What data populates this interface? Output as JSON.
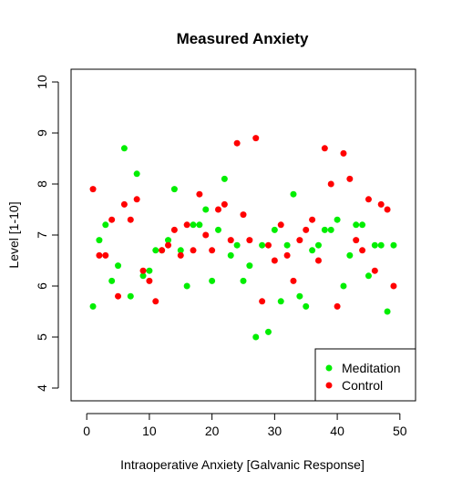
{
  "chart_data": {
    "type": "scatter",
    "title": "Measured Anxiety",
    "xlabel": "Intraoperative Anxiety [Galvanic Response]",
    "ylabel": "Level [1-10]",
    "xlim": [
      -2.5,
      52.5
    ],
    "ylim": [
      3.75,
      10.25
    ],
    "xticks": [
      "0",
      "10",
      "20",
      "30",
      "40",
      "50"
    ],
    "yticks": [
      "4",
      "5",
      "6",
      "7",
      "8",
      "9",
      "10"
    ],
    "legend_position": "bottom-right",
    "series": [
      {
        "name": "Meditation",
        "color": "#00ee00",
        "x": [
          1,
          2,
          3,
          4,
          5,
          6,
          7,
          8,
          9,
          10,
          11,
          12,
          13,
          14,
          15,
          16,
          17,
          18,
          19,
          20,
          21,
          22,
          23,
          24,
          25,
          26,
          27,
          28,
          29,
          30,
          31,
          32,
          33,
          34,
          35,
          36,
          37,
          38,
          39,
          40,
          41,
          42,
          43,
          44,
          45,
          46,
          47,
          48,
          49
        ],
        "y": [
          5.6,
          6.9,
          7.2,
          6.1,
          6.4,
          8.7,
          5.8,
          8.2,
          6.2,
          6.3,
          6.7,
          6.7,
          6.9,
          7.9,
          6.7,
          6.0,
          7.2,
          7.2,
          7.5,
          6.1,
          7.1,
          8.1,
          6.6,
          6.8,
          6.1,
          6.4,
          5.0,
          6.8,
          5.1,
          7.1,
          5.7,
          6.8,
          7.8,
          5.8,
          5.6,
          6.7,
          6.8,
          7.1,
          7.1,
          7.3,
          6.0,
          6.6,
          7.2,
          7.2,
          6.2,
          6.8,
          6.8,
          5.5,
          6.8
        ]
      },
      {
        "name": "Control",
        "color": "#ff0000",
        "x": [
          1,
          2,
          3,
          4,
          5,
          6,
          7,
          8,
          9,
          10,
          11,
          12,
          13,
          14,
          15,
          16,
          17,
          18,
          19,
          20,
          21,
          22,
          23,
          24,
          25,
          26,
          27,
          28,
          29,
          30,
          31,
          32,
          33,
          34,
          35,
          36,
          37,
          38,
          39,
          40,
          41,
          42,
          43,
          44,
          45,
          46,
          47,
          48,
          49
        ],
        "y": [
          7.9,
          6.6,
          6.6,
          7.3,
          5.8,
          7.6,
          7.3,
          7.7,
          6.3,
          6.1,
          5.7,
          6.7,
          6.8,
          7.1,
          6.6,
          7.2,
          6.7,
          7.8,
          7.0,
          6.7,
          7.5,
          7.6,
          6.9,
          8.8,
          7.4,
          6.9,
          8.9,
          5.7,
          6.8,
          6.5,
          7.2,
          6.6,
          6.1,
          6.9,
          7.1,
          7.3,
          6.5,
          8.7,
          8.0,
          5.6,
          8.6,
          8.1,
          6.9,
          6.7,
          7.7,
          6.3,
          7.6,
          7.5,
          6.0
        ]
      }
    ]
  }
}
